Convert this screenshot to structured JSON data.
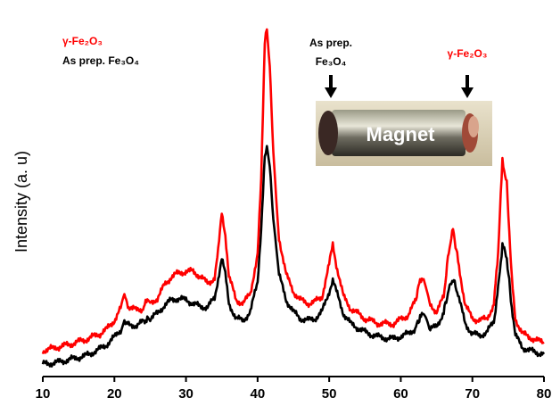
{
  "chart_data": {
    "type": "line",
    "title": "",
    "xlabel": "",
    "ylabel": "Intensity (a. u)",
    "xlim": [
      10,
      80
    ],
    "ylim": [
      0,
      100
    ],
    "xticks": [
      10,
      20,
      30,
      40,
      50,
      60,
      70,
      80
    ],
    "y_tick_labels_shown": false,
    "grid": false,
    "legend": {
      "placement": "top-left",
      "entries": [
        {
          "text": "γ-Fe₂O₃",
          "color": "#ff0000"
        },
        {
          "text": "As prep. Fe₃O₄",
          "color": "#000000"
        }
      ]
    },
    "series": [
      {
        "name": "γ-Fe₂O₃",
        "color": "#ff0000",
        "x": [
          10,
          12,
          14,
          16,
          18,
          19,
          20,
          21,
          21.4,
          22,
          23,
          24,
          24.6,
          25,
          26,
          27,
          28,
          29,
          30,
          31,
          32,
          33,
          34,
          34.5,
          35,
          35.5,
          36,
          37,
          38,
          39,
          40,
          40.5,
          41,
          41.3,
          41.7,
          42.2,
          43,
          44,
          45,
          46,
          47,
          48,
          49,
          50,
          50.5,
          51,
          52,
          53,
          55,
          57,
          59,
          61,
          62,
          62.7,
          63.2,
          64,
          65,
          66,
          66.7,
          67.3,
          68,
          69,
          70,
          71,
          72,
          73,
          73.6,
          74.2,
          74.8,
          75.5,
          76,
          77,
          78,
          79,
          80
        ],
        "y": [
          4.5,
          5.5,
          6.5,
          7.8,
          9.5,
          11,
          13.5,
          17.5,
          20.5,
          17.5,
          16.5,
          17,
          19.5,
          18.5,
          20,
          24,
          26.5,
          27.5,
          28,
          28,
          26.5,
          24.5,
          26,
          34,
          45.5,
          39,
          26.5,
          19.5,
          18.5,
          21.5,
          33,
          55,
          96,
          100,
          90,
          63,
          38,
          27,
          22,
          19.5,
          18.5,
          19,
          20.5,
          30,
          36,
          30,
          20.5,
          17,
          14,
          12.5,
          12.5,
          15,
          19,
          25.5,
          26.5,
          18.5,
          16,
          20.5,
          34,
          40.5,
          31,
          18,
          14,
          13.5,
          14,
          18,
          34,
          61,
          54,
          26,
          14,
          9.5,
          8.5,
          7.5,
          7
        ]
      },
      {
        "name": "As prep. Fe₃O₄",
        "color": "#000000",
        "x": [
          10,
          12,
          14,
          16,
          18,
          19,
          20,
          21,
          21.4,
          22,
          23,
          24,
          24.6,
          25,
          26,
          27,
          28,
          29,
          30,
          31,
          32,
          33,
          34,
          34.5,
          35,
          35.5,
          36,
          37,
          38,
          39,
          40,
          40.5,
          41,
          41.3,
          41.7,
          42.2,
          43,
          44,
          45,
          46,
          47,
          48,
          49,
          50,
          50.5,
          51,
          52,
          53,
          55,
          57,
          59,
          61,
          62,
          62.7,
          63.2,
          64,
          65,
          66,
          66.7,
          67.3,
          68,
          69,
          70,
          71,
          72,
          73,
          73.6,
          74.2,
          74.8,
          75.5,
          76,
          77,
          78,
          79,
          80
        ],
        "y": [
          0.5,
          1,
          2,
          3,
          5,
          6.5,
          8.5,
          11,
          13.5,
          12,
          12,
          13,
          14,
          14,
          15.5,
          18,
          19.5,
          20,
          19.5,
          18.5,
          17.5,
          17.5,
          20,
          26,
          32,
          27,
          18.5,
          14,
          13.5,
          16,
          25,
          41,
          62,
          65,
          59,
          43,
          27,
          19.5,
          16,
          14,
          13.5,
          14,
          16,
          22,
          25.5,
          22,
          15.5,
          12.5,
          10,
          8.5,
          8,
          9.5,
          11,
          14.5,
          15,
          11,
          11.5,
          16,
          22.5,
          26,
          21,
          12.5,
          9.5,
          9,
          10,
          13,
          23,
          36,
          32,
          17.5,
          9,
          5.5,
          4.5,
          4,
          3.5
        ]
      }
    ],
    "annotations": [
      {
        "text_line1": "As prep.",
        "text_line2": "Fe₃O₄",
        "color": "#000000",
        "arrow_x": 50.3
      },
      {
        "text_line1": "γ-Fe₂O₃",
        "color": "#ff0000",
        "arrow_x": 69.5
      }
    ],
    "inset_photo": {
      "label": "Magnet"
    }
  }
}
